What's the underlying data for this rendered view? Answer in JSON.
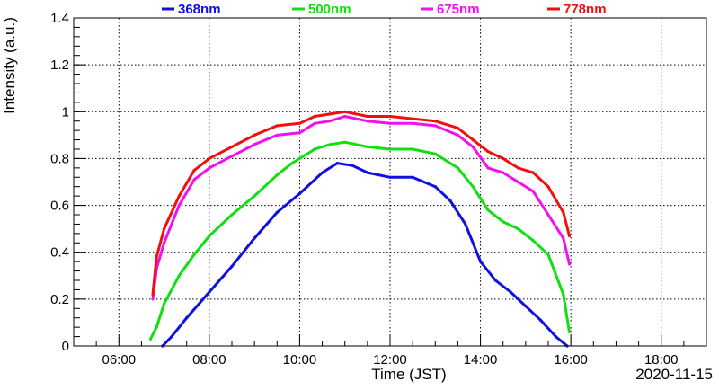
{
  "chart_data": {
    "type": "line",
    "xlabel": "Time (JST)",
    "ylabel": "Intensity (a.u.)",
    "date_label": "2020-11-15",
    "xlim": [
      "05:00",
      "19:00"
    ],
    "ylim": [
      0,
      1.4
    ],
    "grid": true,
    "legend_position": "top",
    "x_ticks": [
      "06:00",
      "08:00",
      "10:00",
      "12:00",
      "14:00",
      "16:00",
      "18:00"
    ],
    "y_ticks": [
      "0",
      "0.2",
      "0.4",
      "0.6",
      "0.8",
      "1",
      "1.2",
      "1.4"
    ],
    "series": [
      {
        "name": "368nm",
        "color": "#1010e0",
        "points": [
          [
            "06:58",
            0.0
          ],
          [
            "07:10",
            0.04
          ],
          [
            "07:30",
            0.12
          ],
          [
            "08:00",
            0.23
          ],
          [
            "08:30",
            0.34
          ],
          [
            "09:00",
            0.46
          ],
          [
            "09:30",
            0.57
          ],
          [
            "10:00",
            0.65
          ],
          [
            "10:10",
            0.68
          ],
          [
            "10:30",
            0.74
          ],
          [
            "10:50",
            0.78
          ],
          [
            "11:10",
            0.77
          ],
          [
            "11:30",
            0.74
          ],
          [
            "12:00",
            0.72
          ],
          [
            "12:30",
            0.72
          ],
          [
            "13:00",
            0.68
          ],
          [
            "13:20",
            0.62
          ],
          [
            "13:40",
            0.52
          ],
          [
            "14:00",
            0.36
          ],
          [
            "14:20",
            0.28
          ],
          [
            "14:40",
            0.23
          ],
          [
            "15:00",
            0.17
          ],
          [
            "15:20",
            0.11
          ],
          [
            "15:40",
            0.04
          ],
          [
            "15:55",
            0.0
          ]
        ]
      },
      {
        "name": "500nm",
        "color": "#10e010",
        "points": [
          [
            "06:42",
            0.03
          ],
          [
            "06:50",
            0.08
          ],
          [
            "07:00",
            0.18
          ],
          [
            "07:20",
            0.3
          ],
          [
            "07:40",
            0.39
          ],
          [
            "08:00",
            0.47
          ],
          [
            "08:30",
            0.56
          ],
          [
            "09:00",
            0.64
          ],
          [
            "09:30",
            0.73
          ],
          [
            "09:50",
            0.78
          ],
          [
            "10:00",
            0.8
          ],
          [
            "10:20",
            0.84
          ],
          [
            "10:40",
            0.86
          ],
          [
            "11:00",
            0.87
          ],
          [
            "11:30",
            0.85
          ],
          [
            "12:00",
            0.84
          ],
          [
            "12:30",
            0.84
          ],
          [
            "13:00",
            0.82
          ],
          [
            "13:30",
            0.76
          ],
          [
            "13:50",
            0.68
          ],
          [
            "14:10",
            0.58
          ],
          [
            "14:30",
            0.53
          ],
          [
            "14:50",
            0.5
          ],
          [
            "15:10",
            0.45
          ],
          [
            "15:30",
            0.39
          ],
          [
            "15:50",
            0.22
          ],
          [
            "15:58",
            0.06
          ]
        ]
      },
      {
        "name": "675nm",
        "color": "#f010f0",
        "points": [
          [
            "06:45",
            0.2
          ],
          [
            "06:50",
            0.33
          ],
          [
            "07:00",
            0.44
          ],
          [
            "07:20",
            0.6
          ],
          [
            "07:40",
            0.71
          ],
          [
            "08:00",
            0.76
          ],
          [
            "08:30",
            0.81
          ],
          [
            "09:00",
            0.86
          ],
          [
            "09:30",
            0.9
          ],
          [
            "10:00",
            0.91
          ],
          [
            "10:20",
            0.95
          ],
          [
            "10:40",
            0.96
          ],
          [
            "11:00",
            0.98
          ],
          [
            "11:30",
            0.96
          ],
          [
            "12:00",
            0.95
          ],
          [
            "12:30",
            0.95
          ],
          [
            "13:00",
            0.94
          ],
          [
            "13:30",
            0.9
          ],
          [
            "13:50",
            0.85
          ],
          [
            "14:10",
            0.76
          ],
          [
            "14:30",
            0.74
          ],
          [
            "14:50",
            0.7
          ],
          [
            "15:10",
            0.66
          ],
          [
            "15:30",
            0.56
          ],
          [
            "15:50",
            0.46
          ],
          [
            "15:58",
            0.35
          ]
        ]
      },
      {
        "name": "778nm",
        "color": "#f01010",
        "points": [
          [
            "06:45",
            0.22
          ],
          [
            "06:50",
            0.38
          ],
          [
            "07:00",
            0.5
          ],
          [
            "07:20",
            0.64
          ],
          [
            "07:40",
            0.75
          ],
          [
            "08:00",
            0.8
          ],
          [
            "08:30",
            0.85
          ],
          [
            "09:00",
            0.9
          ],
          [
            "09:30",
            0.94
          ],
          [
            "10:00",
            0.95
          ],
          [
            "10:20",
            0.98
          ],
          [
            "10:40",
            0.99
          ],
          [
            "11:00",
            1.0
          ],
          [
            "11:30",
            0.98
          ],
          [
            "12:00",
            0.98
          ],
          [
            "12:30",
            0.97
          ],
          [
            "13:00",
            0.96
          ],
          [
            "13:30",
            0.93
          ],
          [
            "13:50",
            0.88
          ],
          [
            "14:10",
            0.83
          ],
          [
            "14:30",
            0.8
          ],
          [
            "14:50",
            0.76
          ],
          [
            "15:10",
            0.74
          ],
          [
            "15:30",
            0.68
          ],
          [
            "15:50",
            0.57
          ],
          [
            "15:58",
            0.47
          ]
        ]
      }
    ]
  }
}
